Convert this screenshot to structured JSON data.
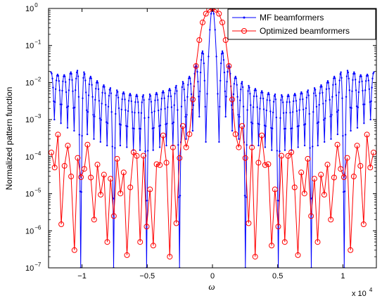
{
  "chart_data": {
    "type": "line",
    "ylabel": "Normalized pattern function",
    "xlabel": "ω",
    "x_exponent_label": {
      "base": "x 10",
      "exp": "4"
    },
    "xlim": [
      -12566,
      12566
    ],
    "ylim_log10": [
      -7,
      0
    ],
    "y_scale": "log",
    "grid": false,
    "legend_position": "top-right",
    "x_ticks": [
      {
        "value": -10000,
        "label": "−1"
      },
      {
        "value": -5000,
        "label": "−0.5"
      },
      {
        "value": 0,
        "label": "0"
      },
      {
        "value": 5000,
        "label": "0.5"
      },
      {
        "value": 10000,
        "label": "1"
      }
    ],
    "y_ticks": [
      {
        "exp": -7,
        "base": "10",
        "sup": "−7"
      },
      {
        "exp": -6,
        "base": "10",
        "sup": "−6"
      },
      {
        "exp": -5,
        "base": "10",
        "sup": "−5"
      },
      {
        "exp": -4,
        "base": "10",
        "sup": "−4"
      },
      {
        "exp": -3,
        "base": "10",
        "sup": "−3"
      },
      {
        "exp": -2,
        "base": "10",
        "sup": "−2"
      },
      {
        "exp": -1,
        "base": "10",
        "sup": "−1"
      },
      {
        "exp": 0,
        "base": "10",
        "sup": "0"
      }
    ],
    "series": [
      {
        "name": "MF beamformers",
        "color": "#0000ff",
        "marker": "dot",
        "side_lobe_peaks": [
          {
            "x": 758,
            "y": 0.07
          },
          {
            "x": 1263,
            "y": 0.03
          },
          {
            "x": 1768,
            "y": 0.0145
          },
          {
            "x": 2273,
            "y": 0.0105
          },
          {
            "x": 2778,
            "y": 0.0082
          },
          {
            "x": 3283,
            "y": 0.0068
          },
          {
            "x": 3788,
            "y": 0.0059
          },
          {
            "x": 4293,
            "y": 0.0053
          },
          {
            "x": 4798,
            "y": 0.0048
          },
          {
            "x": 5303,
            "y": 0.0046
          },
          {
            "x": 5808,
            "y": 0.0047
          },
          {
            "x": 6313,
            "y": 0.005
          },
          {
            "x": 6818,
            "y": 0.0055
          },
          {
            "x": 7323,
            "y": 0.0062
          },
          {
            "x": 7828,
            "y": 0.0071
          },
          {
            "x": 8333,
            "y": 0.0085
          },
          {
            "x": 8838,
            "y": 0.011
          },
          {
            "x": 9343,
            "y": 0.0145
          },
          {
            "x": 9848,
            "y": 0.019
          },
          {
            "x": 10353,
            "y": 0.021
          },
          {
            "x": 10858,
            "y": 0.019
          },
          {
            "x": 11363,
            "y": 0.016
          },
          {
            "x": 11868,
            "y": 0.0165
          },
          {
            "x": 12373,
            "y": 0.019
          }
        ],
        "nulls": [
          {
            "x": 505,
            "y": 0.00025
          },
          {
            "x": 1010,
            "y": 0.0012
          },
          {
            "x": 1515,
            "y": 0.0005
          },
          {
            "x": 2020,
            "y": 0.0003
          },
          {
            "x": 2525,
            "y": 1e-07
          },
          {
            "x": 3030,
            "y": 0.0002
          },
          {
            "x": 3535,
            "y": 0.0002
          },
          {
            "x": 4040,
            "y": 0.00018
          },
          {
            "x": 4545,
            "y": 0.00015
          },
          {
            "x": 5050,
            "y": 1e-07
          },
          {
            "x": 5555,
            "y": 0.00015
          },
          {
            "x": 6060,
            "y": 0.00015
          },
          {
            "x": 6565,
            "y": 0.00018
          },
          {
            "x": 7070,
            "y": 0.0002
          },
          {
            "x": 7575,
            "y": 1e-07
          },
          {
            "x": 8080,
            "y": 0.0002
          },
          {
            "x": 8585,
            "y": 0.00025
          },
          {
            "x": 9090,
            "y": 0.0003
          },
          {
            "x": 9595,
            "y": 0.0004
          },
          {
            "x": 10100,
            "y": 1e-07
          },
          {
            "x": 10605,
            "y": 0.0005
          },
          {
            "x": 11110,
            "y": 0.0006
          },
          {
            "x": 11615,
            "y": 0.0008
          },
          {
            "x": 12120,
            "y": 0.001
          }
        ]
      },
      {
        "name": "Optimized beamformers",
        "color": "#ff0000",
        "marker": "circle",
        "x_step": 252,
        "main_lobe": [
          {
            "x": 0,
            "y": 1.0
          },
          {
            "x": 252,
            "y": 0.93
          },
          {
            "x": 504,
            "y": 0.72
          },
          {
            "x": 756,
            "y": 0.42
          },
          {
            "x": 1008,
            "y": 0.14
          },
          {
            "x": 1260,
            "y": 0.028
          },
          {
            "x": 1512,
            "y": 0.0035
          }
        ],
        "side_lobe_level": [
          {
            "x": 1600,
            "y": 0.0006
          },
          {
            "x": 2500,
            "y": 0.00025
          },
          {
            "x": 3600,
            "y": 0.00015
          },
          {
            "x": 5000,
            "y": 9e-05
          },
          {
            "x": 7000,
            "y": 7e-05
          },
          {
            "x": 9000,
            "y": 7e-05
          },
          {
            "x": 10500,
            "y": 9e-05
          },
          {
            "x": 11500,
            "y": 0.00015
          },
          {
            "x": 12500,
            "y": 0.0004
          }
        ],
        "deep_nulls": [
          {
            "x": 2650,
            "y": 1.6e-06
          },
          {
            "x": 3150,
            "y": 2e-07
          },
          {
            "x": 4480,
            "y": 4e-07
          },
          {
            "x": 4980,
            "y": 1.3e-06
          },
          {
            "x": 5500,
            "y": 5e-07
          },
          {
            "x": 6500,
            "y": 2.2e-07
          },
          {
            "x": 7560,
            "y": 2.5e-06
          },
          {
            "x": 8060,
            "y": 5e-07
          },
          {
            "x": 9070,
            "y": 2e-06
          },
          {
            "x": 10580,
            "y": 3e-07
          },
          {
            "x": 11580,
            "y": 1.5e-06
          }
        ]
      }
    ]
  }
}
